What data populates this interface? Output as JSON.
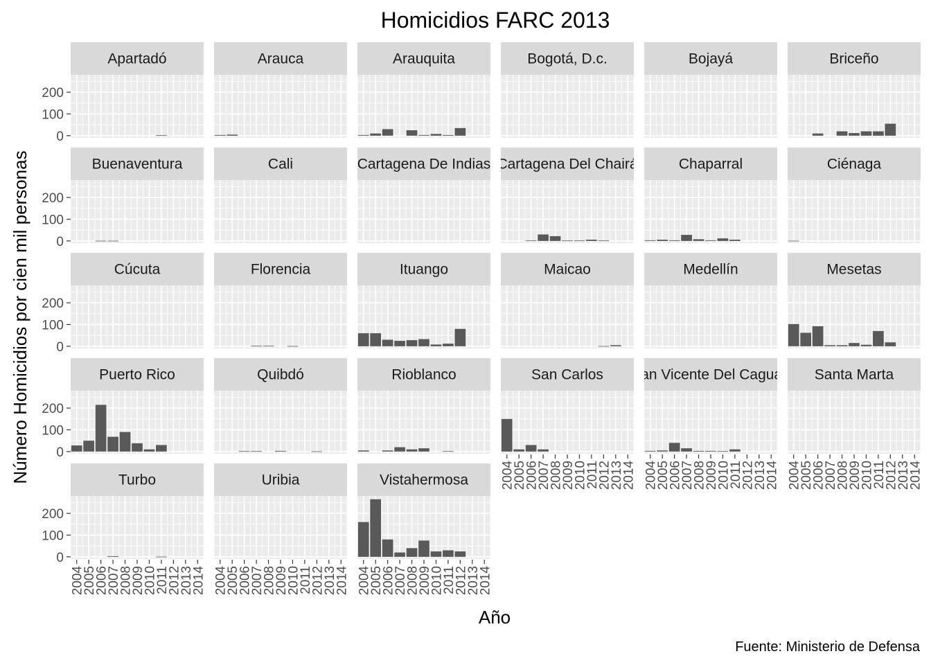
{
  "chart_data": {
    "type": "bar",
    "title": "Homicidios FARC 2013",
    "xlabel": "Año",
    "ylabel": "Número Homicidios por cien mil personas",
    "caption": "Fuente: Ministerio de Defensa",
    "x_categories": [
      "2004",
      "2005",
      "2006",
      "2007",
      "2008",
      "2009",
      "2010",
      "2011",
      "2012",
      "2013",
      "2014"
    ],
    "y_ticks": [
      0,
      100,
      200
    ],
    "ylim": [
      -10,
      280
    ],
    "grid": true,
    "bar_color": "#595959",
    "panel_bg": "#ebebeb",
    "strip_bg": "#d9d9d9",
    "grid_color": "#ffffff",
    "facet_columns": 6,
    "panels": [
      {
        "name": "Apartadó",
        "values": [
          null,
          null,
          null,
          null,
          null,
          null,
          null,
          2,
          null,
          null,
          null
        ]
      },
      {
        "name": "Arauca",
        "values": [
          3,
          5,
          null,
          null,
          null,
          null,
          null,
          null,
          null,
          null,
          null
        ]
      },
      {
        "name": "Arauquita",
        "values": [
          3,
          10,
          30,
          null,
          25,
          3,
          8,
          3,
          35,
          null,
          null
        ]
      },
      {
        "name": "Bogotá, D.c.",
        "values": [
          null,
          null,
          null,
          null,
          null,
          null,
          null,
          null,
          null,
          null,
          null
        ]
      },
      {
        "name": "Bojayá",
        "values": [
          null,
          null,
          null,
          null,
          null,
          null,
          null,
          null,
          null,
          null,
          null
        ]
      },
      {
        "name": "Briceño",
        "values": [
          null,
          null,
          10,
          null,
          20,
          12,
          20,
          20,
          55,
          null,
          null
        ]
      },
      {
        "name": "Buenaventura",
        "values": [
          null,
          null,
          1,
          1,
          null,
          null,
          null,
          null,
          null,
          null,
          null
        ]
      },
      {
        "name": "Cali",
        "values": [
          null,
          null,
          null,
          null,
          null,
          null,
          null,
          null,
          null,
          null,
          null
        ]
      },
      {
        "name": "Cartagena De Indias",
        "values": [
          null,
          null,
          null,
          null,
          null,
          null,
          null,
          null,
          null,
          null,
          null
        ]
      },
      {
        "name": "Cartagena Del Chairá",
        "values": [
          null,
          null,
          2,
          30,
          22,
          2,
          2,
          6,
          2,
          null,
          null
        ]
      },
      {
        "name": "Chaparral",
        "values": [
          3,
          6,
          3,
          28,
          8,
          3,
          12,
          6,
          null,
          null,
          null
        ]
      },
      {
        "name": "Ciénaga",
        "values": [
          1,
          null,
          null,
          null,
          null,
          null,
          null,
          null,
          null,
          null,
          null
        ]
      },
      {
        "name": "Cúcuta",
        "values": [
          null,
          null,
          null,
          null,
          null,
          null,
          null,
          null,
          null,
          null,
          null
        ]
      },
      {
        "name": "Florencia",
        "values": [
          null,
          null,
          null,
          2,
          2,
          null,
          1,
          null,
          null,
          null,
          null
        ]
      },
      {
        "name": "Ituango",
        "values": [
          60,
          60,
          30,
          25,
          28,
          33,
          8,
          12,
          80,
          null,
          null
        ]
      },
      {
        "name": "Maicao",
        "values": [
          null,
          null,
          null,
          null,
          null,
          null,
          null,
          null,
          1,
          5,
          null
        ]
      },
      {
        "name": "Medellín",
        "values": [
          null,
          null,
          null,
          null,
          null,
          null,
          null,
          null,
          null,
          null,
          null
        ]
      },
      {
        "name": "Mesetas",
        "values": [
          102,
          62,
          92,
          5,
          5,
          15,
          7,
          70,
          18,
          null,
          null
        ]
      },
      {
        "name": "Puerto Rico",
        "values": [
          28,
          50,
          215,
          68,
          90,
          38,
          10,
          30,
          null,
          null,
          null
        ]
      },
      {
        "name": "Quibdó",
        "values": [
          null,
          null,
          2,
          2,
          null,
          3,
          null,
          null,
          1,
          null,
          null
        ]
      },
      {
        "name": "Rioblanco",
        "values": [
          5,
          null,
          5,
          20,
          10,
          15,
          null,
          2,
          null,
          null,
          null
        ]
      },
      {
        "name": "San Carlos",
        "values": [
          150,
          10,
          30,
          10,
          null,
          null,
          null,
          null,
          null,
          null,
          null
        ]
      },
      {
        "name": "San Vicente Del Caguán",
        "values": [
          3,
          5,
          40,
          15,
          3,
          3,
          2,
          10,
          null,
          null,
          null
        ]
      },
      {
        "name": "Santa Marta",
        "values": [
          null,
          null,
          null,
          null,
          null,
          null,
          null,
          null,
          null,
          null,
          null
        ]
      },
      {
        "name": "Turbo",
        "values": [
          null,
          null,
          null,
          3,
          null,
          null,
          null,
          1,
          null,
          null,
          null
        ]
      },
      {
        "name": "Uribia",
        "values": [
          null,
          null,
          null,
          null,
          null,
          null,
          null,
          null,
          null,
          null,
          null
        ]
      },
      {
        "name": "Vistahermosa",
        "values": [
          160,
          265,
          80,
          20,
          40,
          75,
          25,
          30,
          25,
          null,
          null
        ]
      }
    ]
  }
}
